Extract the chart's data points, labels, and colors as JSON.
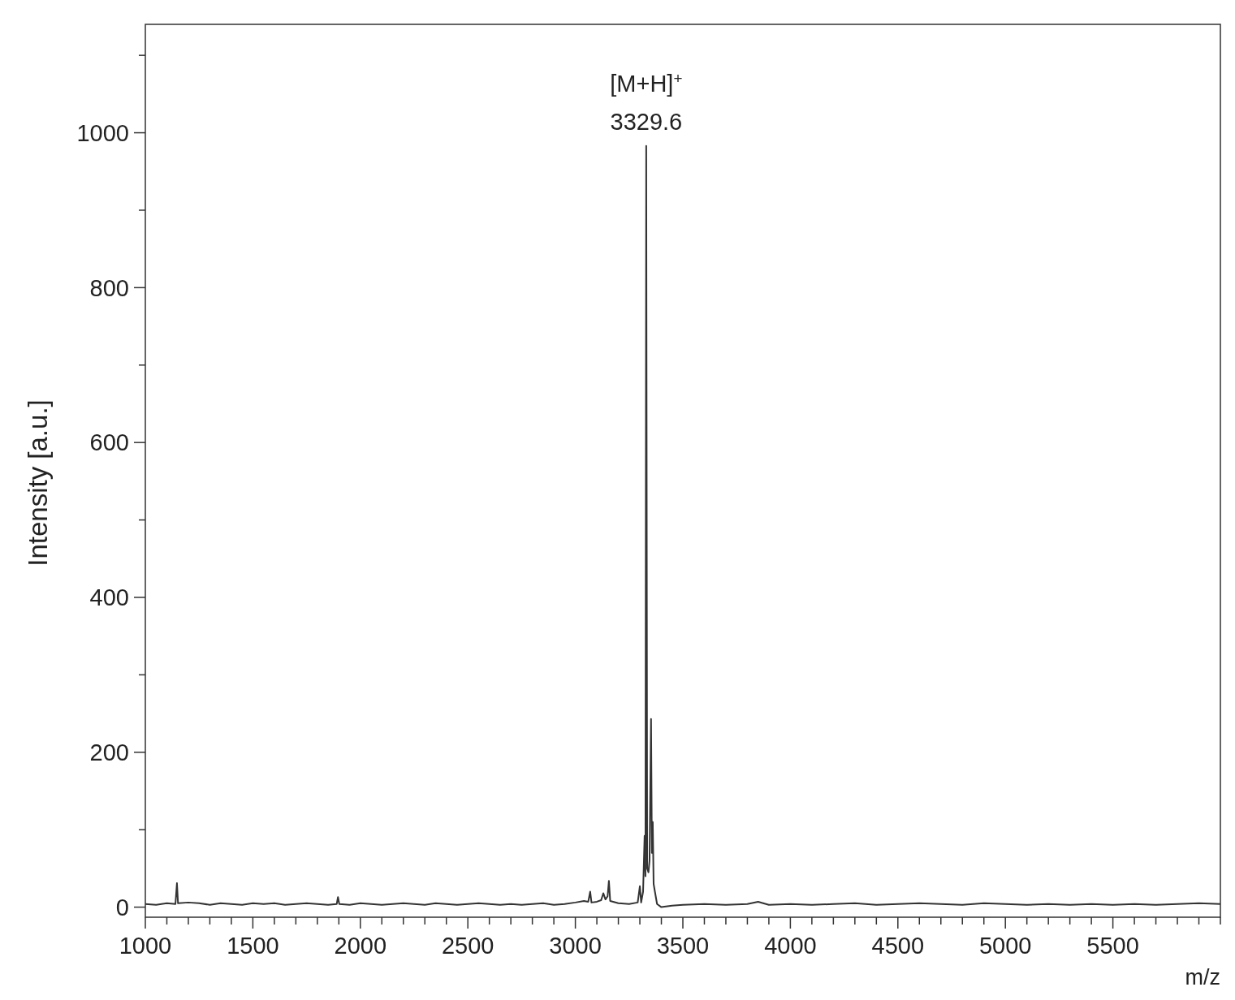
{
  "chart_data": {
    "type": "line",
    "xlabel": "m/z",
    "ylabel": "Intensity [a.u.]",
    "annotations": [
      {
        "text": "[M+H]$^{+}$",
        "x": 3329.6,
        "y": 983
      },
      {
        "text": "3329.6",
        "x": 3329.6,
        "y": 983
      }
    ],
    "xlim": [
      1000,
      6000
    ],
    "ylim": [
      -13,
      1140
    ],
    "xticks": [
      1000,
      {
        "value": 1100,
        "label": null
      },
      {
        "value": 1200,
        "label": null
      },
      {
        "value": 1300,
        "label": null
      },
      {
        "value": 1400,
        "label": null
      },
      1500,
      {
        "value": 1600,
        "label": null
      },
      {
        "value": 1700,
        "label": null
      },
      {
        "value": 1800,
        "label": null
      },
      {
        "value": 1900,
        "label": null
      },
      2000,
      {
        "value": 2100,
        "label": null
      },
      {
        "value": 2200,
        "label": null
      },
      {
        "value": 2300,
        "label": null
      },
      {
        "value": 2400,
        "label": null
      },
      2500,
      {
        "value": 2600,
        "label": null
      },
      {
        "value": 2700,
        "label": null
      },
      {
        "value": 2800,
        "label": null
      },
      {
        "value": 2900,
        "label": null
      },
      3000,
      {
        "value": 3100,
        "label": null
      },
      {
        "value": 3200,
        "label": null
      },
      {
        "value": 3300,
        "label": null
      },
      {
        "value": 3400,
        "label": null
      },
      3500,
      {
        "value": 3600,
        "label": null
      },
      {
        "value": 3700,
        "label": null
      },
      {
        "value": 3800,
        "label": null
      },
      {
        "value": 3900,
        "label": null
      },
      4000,
      {
        "value": 4100,
        "label": null
      },
      {
        "value": 4200,
        "label": null
      },
      {
        "value": 4300,
        "label": null
      },
      {
        "value": 4400,
        "label": null
      },
      4500,
      {
        "value": 4600,
        "label": null
      },
      {
        "value": 4700,
        "label": null
      },
      {
        "value": 4800,
        "label": null
      },
      {
        "value": 4900,
        "label": null
      },
      5000,
      {
        "value": 5100,
        "label": null
      },
      {
        "value": 5200,
        "label": null
      },
      {
        "value": 5300,
        "label": null
      },
      {
        "value": 5400,
        "label": null
      },
      5500,
      {
        "value": 5600,
        "label": null
      },
      {
        "value": 5700,
        "label": null
      },
      {
        "value": 5800,
        "label": null
      },
      {
        "value": 5900,
        "label": null
      },
      {
        "value": 6000,
        "label": null
      }
    ],
    "yticks": [
      0,
      {
        "value": 100,
        "label": null
      },
      200,
      {
        "value": 300,
        "label": null
      },
      400,
      {
        "value": 500,
        "label": null
      },
      600,
      {
        "value": 700,
        "label": null
      },
      800,
      {
        "value": 900,
        "label": null
      },
      1000,
      {
        "value": 1100,
        "label": null
      }
    ],
    "grid": false,
    "marker": "none",
    "line_style": "solid",
    "series": [
      {
        "color": "#333333",
        "x": [
          1000,
          1050,
          1100,
          1140,
          1147,
          1152,
          1200,
          1250,
          1300,
          1350,
          1400,
          1450,
          1500,
          1550,
          1600,
          1650,
          1700,
          1750,
          1800,
          1850,
          1890,
          1896,
          1902,
          1950,
          2000,
          2050,
          2100,
          2150,
          2200,
          2250,
          2300,
          2350,
          2400,
          2450,
          2500,
          2550,
          2600,
          2650,
          2700,
          2750,
          2800,
          2850,
          2900,
          2950,
          3000,
          3040,
          3060,
          3069,
          3075,
          3100,
          3120,
          3130,
          3140,
          3150,
          3156,
          3162,
          3200,
          3250,
          3290,
          3300,
          3306,
          3315,
          3322,
          3326,
          3329.6,
          3334,
          3340,
          3345,
          3352,
          3356,
          3360,
          3364,
          3370,
          3380,
          3400,
          3450,
          3500,
          3600,
          3700,
          3800,
          3850,
          3900,
          4000,
          4100,
          4200,
          4300,
          4400,
          4500,
          4600,
          4700,
          4800,
          4900,
          5000,
          5100,
          5200,
          5300,
          5400,
          5500,
          5600,
          5700,
          5800,
          5900,
          6000
        ],
        "values": [
          4,
          3,
          5,
          4,
          31,
          5,
          6,
          5,
          3,
          5,
          4,
          3,
          5,
          4,
          5,
          3,
          4,
          5,
          4,
          3,
          4,
          13,
          4,
          3,
          5,
          4,
          3,
          4,
          5,
          4,
          3,
          5,
          4,
          3,
          4,
          5,
          4,
          3,
          4,
          3,
          4,
          5,
          3,
          4,
          6,
          8,
          7,
          20,
          6,
          7,
          9,
          18,
          10,
          14,
          34,
          8,
          5,
          4,
          6,
          27,
          6,
          20,
          92,
          40,
          983,
          50,
          45,
          60,
          243,
          70,
          110,
          30,
          20,
          4,
          0,
          2,
          3,
          4,
          3,
          4,
          7,
          3,
          4,
          3,
          4,
          5,
          3,
          4,
          5,
          4,
          3,
          5,
          4,
          3,
          4,
          3,
          4,
          3,
          4,
          3,
          4,
          5,
          4
        ]
      }
    ]
  }
}
